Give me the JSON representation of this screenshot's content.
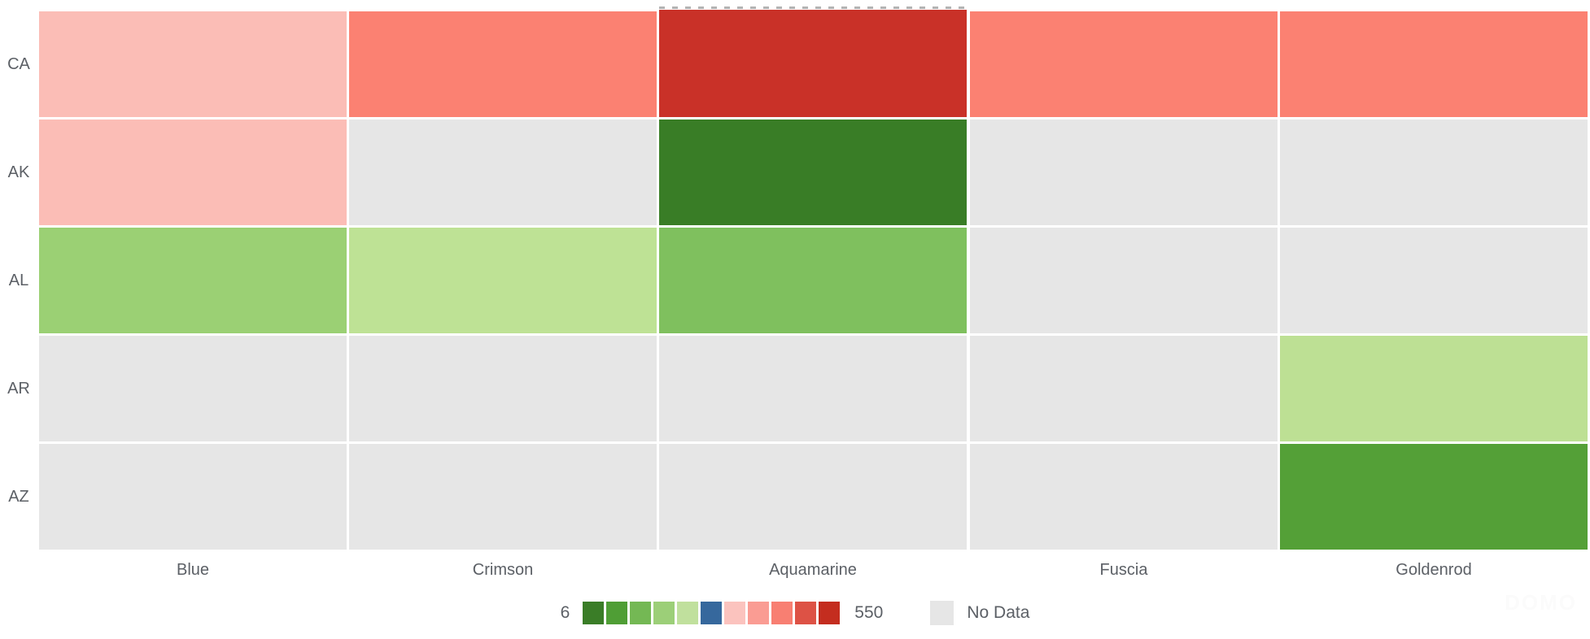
{
  "chart_data": {
    "type": "heatmap",
    "rows": [
      "CA",
      "AK",
      "AL",
      "AR",
      "AZ"
    ],
    "columns": [
      "Blue",
      "Crimson",
      "Aquamarine",
      "Fuscia",
      "Goldenrod"
    ],
    "cells": [
      [
        "#FBBDB6",
        "#FB8172",
        "#C93128",
        "#FB8172",
        "#FB8172"
      ],
      [
        "#FBBDB6",
        null,
        "#397D26",
        null,
        null
      ],
      [
        "#9BD074",
        "#BEE295",
        "#7FC05E",
        null,
        null
      ],
      [
        null,
        null,
        null,
        null,
        "#BDE094"
      ],
      [
        null,
        null,
        null,
        null,
        "#54A037"
      ]
    ],
    "no_data_color": "#E6E6E6",
    "highlighted_cell": {
      "row": "CA",
      "column": "Aquamarine"
    },
    "legend": {
      "min": 6,
      "max": 550,
      "min_label": "6",
      "max_label": "550",
      "palette": [
        "#3A7D27",
        "#4F9E35",
        "#74B854",
        "#9CCF78",
        "#C0E09D",
        "#36689D",
        "#FBC3BE",
        "#FA9C93",
        "#F87F72",
        "#DD5245",
        "#C42D1F"
      ],
      "no_data_label": "No Data",
      "no_data_color": "#E6E6E6"
    },
    "layout": {
      "grid": "off",
      "legend_position": "bottom-center",
      "axis_label_color": "#5c6066"
    }
  },
  "watermark": "DOMO"
}
